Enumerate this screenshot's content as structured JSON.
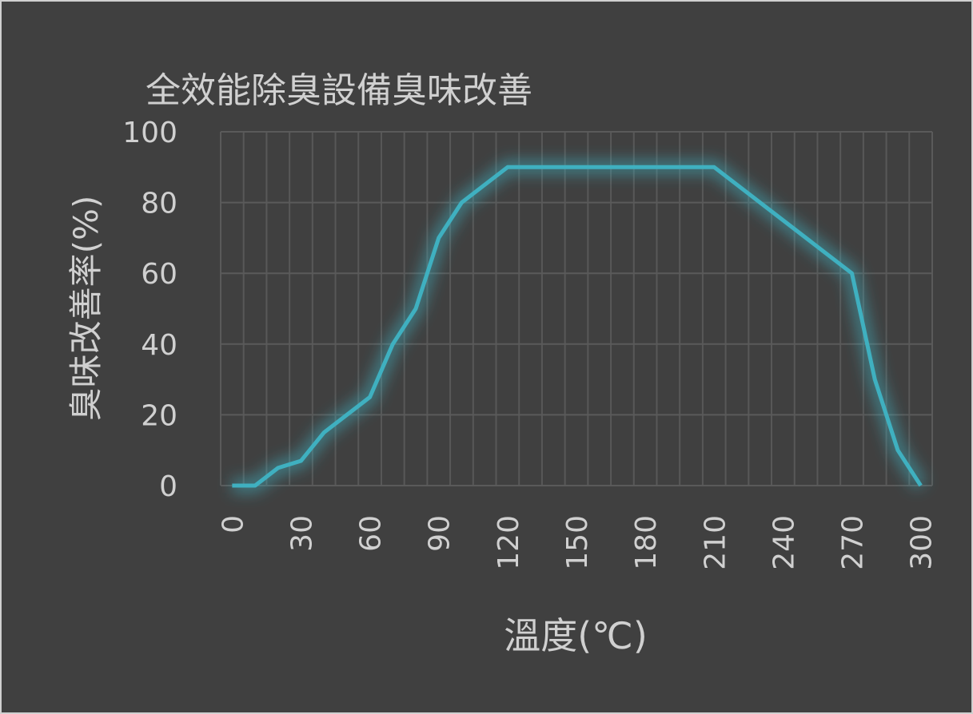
{
  "chart_data": {
    "type": "line",
    "title": "全效能除臭設備臭味改善",
    "xlabel": "溫度(℃)",
    "ylabel": "臭味改善率(%)",
    "x": [
      0,
      10,
      20,
      30,
      40,
      50,
      60,
      70,
      80,
      90,
      100,
      110,
      120,
      130,
      140,
      150,
      160,
      170,
      180,
      190,
      200,
      210,
      220,
      230,
      240,
      250,
      260,
      270,
      280,
      290,
      300
    ],
    "series": [
      {
        "name": "臭味改善率",
        "color": "#3fb0c0",
        "values": [
          0,
          0,
          5,
          7,
          15,
          20,
          25,
          40,
          50,
          70,
          80,
          85,
          90,
          90,
          90,
          90,
          90,
          90,
          90,
          90,
          90,
          90,
          85,
          80,
          75,
          70,
          65,
          60,
          30,
          10,
          0
        ]
      }
    ],
    "xlim": [
      -5,
      305
    ],
    "xticks": [
      0,
      30,
      60,
      90,
      120,
      150,
      180,
      210,
      240,
      270,
      300
    ],
    "ylim": [
      0,
      100
    ],
    "yticks": [
      0,
      20,
      40,
      60,
      80,
      100
    ],
    "grid": true
  }
}
